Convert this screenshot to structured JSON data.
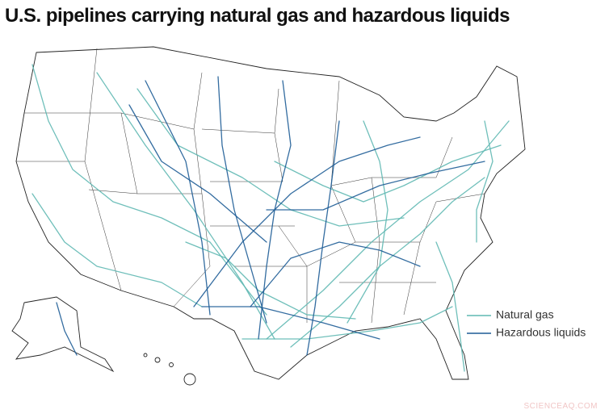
{
  "title": "U.S. pipelines carrying natural gas and hazardous liquids",
  "legend": [
    {
      "label": "Natural gas",
      "color": "#5fb8b2"
    },
    {
      "label": "Hazardous liquids",
      "color": "#1d5c96"
    }
  ],
  "watermark": "SCIENCEAQ.COM"
}
